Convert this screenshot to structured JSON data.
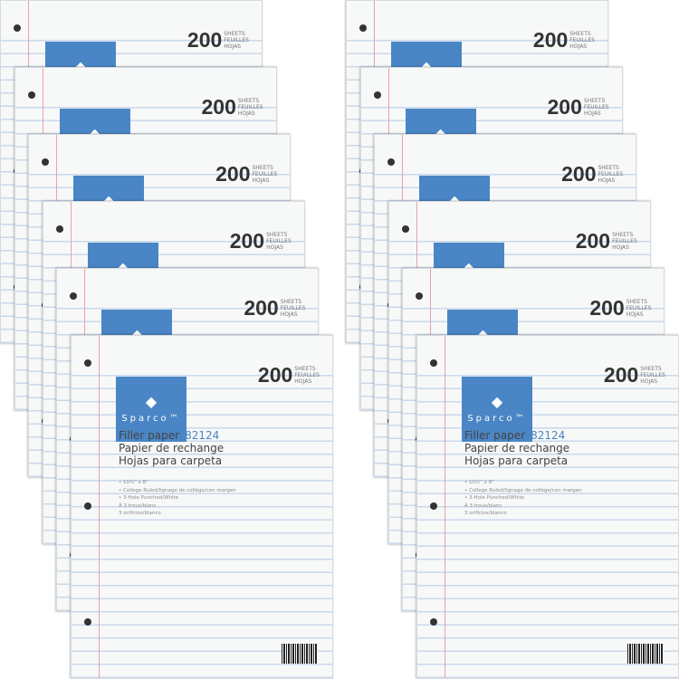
{
  "product": {
    "count": "200",
    "units": [
      "SHEETS",
      "FEUILLES",
      "HOJAS"
    ],
    "brand": "Sparco™",
    "title_en": "Filler paper",
    "item_code": "82124",
    "title_fr": "Papier de rechange",
    "title_es": "Hojas para carpeta",
    "specs": [
      "• 10½\" x 8\"",
      "• College Ruled/lignage de collège/con margen",
      "• 3-Hole Punched/White",
      "À 3 trous/blanc",
      "3 orificios/blanco"
    ]
  },
  "colors": {
    "logo_blue": "#4a86c5",
    "rule_blue": "#c9d9ec",
    "margin_red": "#e6a3a8"
  },
  "stacks": [
    {
      "packs": 6
    },
    {
      "packs": 6
    }
  ]
}
